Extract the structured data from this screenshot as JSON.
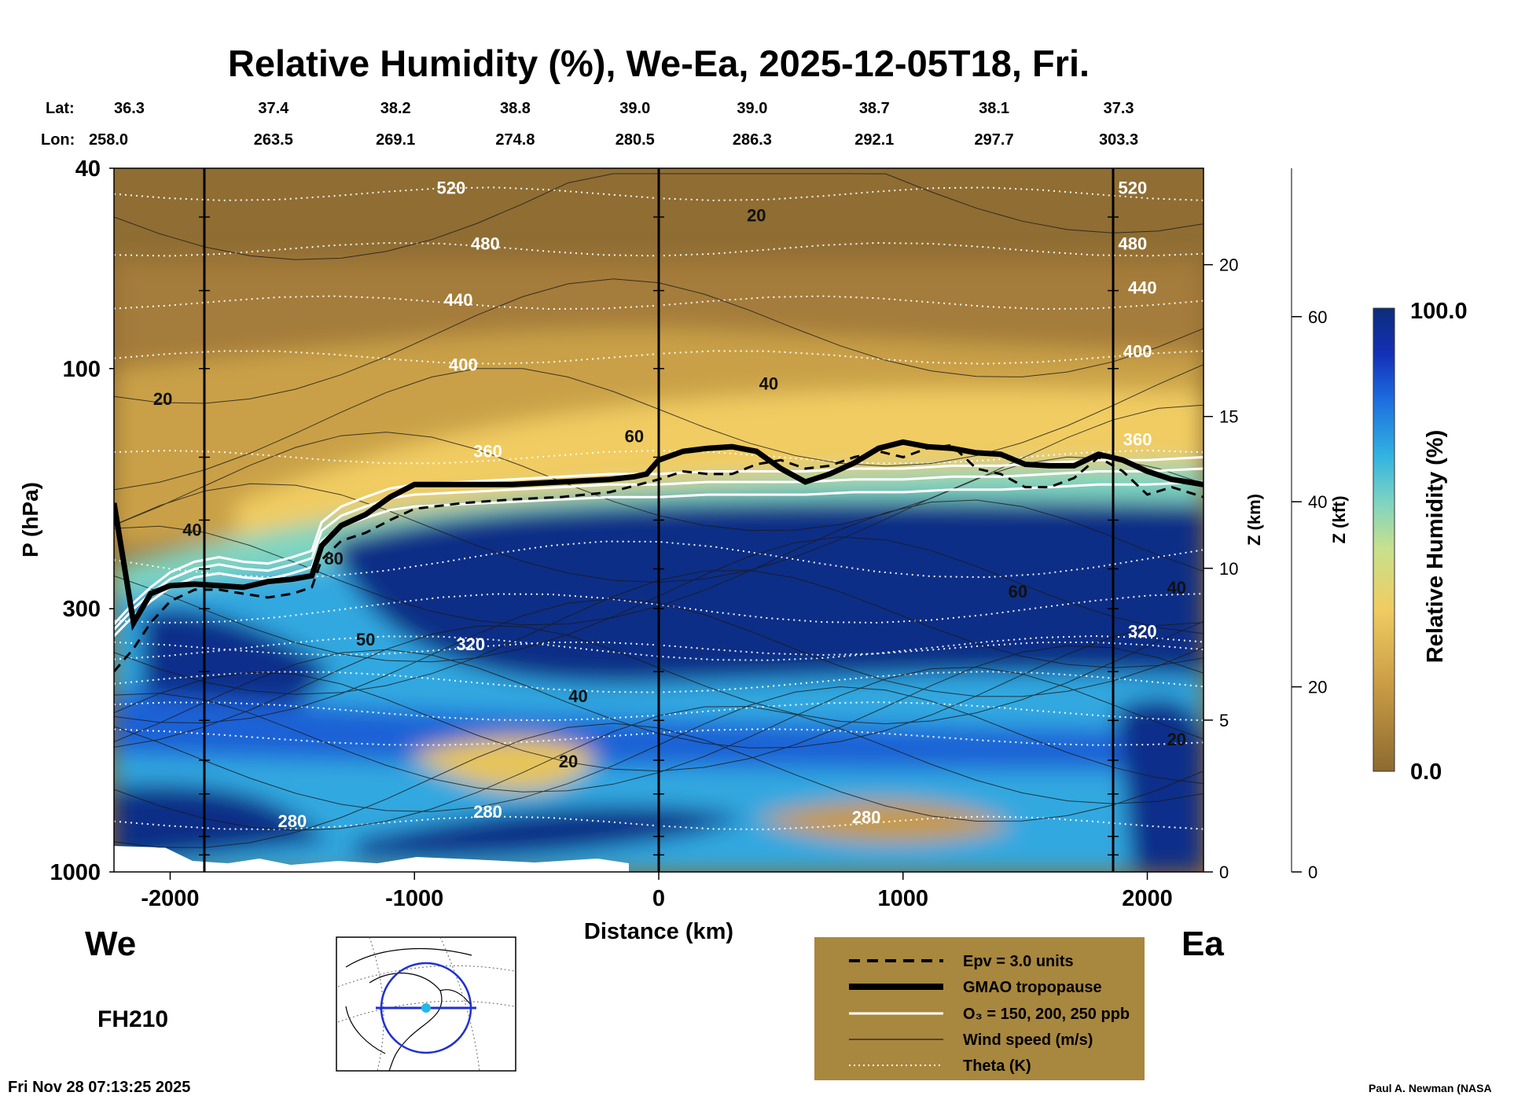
{
  "chart_data": {
    "type": "heatmap",
    "title": "Relative Humidity (%), We-Ea, 2025-12-05T18, Fri.",
    "xlabel": "Distance (km)",
    "ylabel": "P (hPa)",
    "y2label": "Z (km)",
    "y3label": "Z (kft)",
    "colorbar_label": "Relative Humidity (%)",
    "colorbar_range": [
      0.0,
      100.0
    ],
    "colorbar_ticks": [
      "100.0",
      "0.0"
    ],
    "xlim": [
      -2230,
      2230
    ],
    "ylim": [
      1000,
      40
    ],
    "y_scale": "log",
    "x_ticks": [
      -2000,
      -1000,
      0,
      1000,
      2000
    ],
    "x_tick_labels": [
      "-2000",
      "-1000",
      "0",
      "1000",
      "2000"
    ],
    "y_ticks": [
      40,
      100,
      300,
      1000
    ],
    "y_tick_labels": [
      "40",
      "100",
      "300",
      "1000"
    ],
    "z_km_ticks": [
      0,
      5,
      10,
      15,
      20
    ],
    "z_kft_ticks": [
      0,
      20,
      40,
      60
    ],
    "lat_label": "Lat:",
    "lon_label": "Lon:",
    "lat_values": [
      "36.3",
      "37.4",
      "38.2",
      "38.8",
      "39.0",
      "39.0",
      "38.7",
      "38.1",
      "37.3"
    ],
    "lon_values": [
      "258.0",
      "263.5",
      "269.1",
      "274.8",
      "280.5",
      "286.3",
      "292.1",
      "297.7",
      "303.3"
    ],
    "latlon_distances": [
      -2230,
      -1690,
      -1190,
      -700,
      -210,
      270,
      770,
      1260,
      1770
    ],
    "section_markers_km": [
      -1860,
      0,
      1860
    ],
    "tropopause": {
      "name": "GMAO tropopause",
      "x": [
        -2230,
        -2150,
        -2080,
        -2000,
        -1900,
        -1800,
        -1700,
        -1600,
        -1500,
        -1420,
        -1380,
        -1300,
        -1200,
        -1100,
        -1000,
        -800,
        -600,
        -400,
        -200,
        -100,
        -50,
        0,
        100,
        200,
        300,
        400,
        500,
        600,
        700,
        800,
        900,
        1000,
        1100,
        1200,
        1300,
        1400,
        1500,
        1600,
        1700,
        1800,
        1900,
        2000,
        2100,
        2230
      ],
      "p": [
        185,
        320,
        280,
        270,
        268,
        270,
        272,
        265,
        262,
        258,
        225,
        205,
        195,
        180,
        170,
        170,
        170,
        168,
        166,
        164,
        162,
        152,
        146,
        144,
        143,
        146,
        158,
        168,
        162,
        154,
        144,
        140,
        143,
        144,
        147,
        148,
        155,
        156,
        156,
        148,
        152,
        160,
        166,
        170
      ]
    },
    "epv": {
      "name": "Epv = 3.0 units",
      "x": [
        -2230,
        -2150,
        -2080,
        -2000,
        -1900,
        -1800,
        -1700,
        -1600,
        -1500,
        -1420,
        -1380,
        -1300,
        -1200,
        -1100,
        -1000,
        -800,
        -600,
        -400,
        -200,
        0,
        100,
        200,
        300,
        400,
        500,
        600,
        700,
        800,
        900,
        1000,
        1100,
        1200,
        1300,
        1400,
        1500,
        1600,
        1700,
        1800,
        1900,
        2000,
        2100,
        2230
      ],
      "p": [
        400,
        360,
        320,
        290,
        275,
        275,
        280,
        285,
        280,
        272,
        240,
        220,
        212,
        200,
        190,
        185,
        182,
        180,
        176,
        166,
        160,
        162,
        162,
        155,
        152,
        158,
        156,
        150,
        146,
        150,
        144,
        142,
        158,
        162,
        172,
        172,
        165,
        150,
        160,
        178,
        172,
        180
      ]
    },
    "ozone": {
      "name": "O₃ = 150, 200, 250 ppb",
      "x": [
        -2230,
        -2150,
        -2080,
        -2000,
        -1900,
        -1800,
        -1700,
        -1600,
        -1500,
        -1420,
        -1380,
        -1300,
        -1200,
        -1100,
        -1000,
        -800,
        -600,
        -400,
        -200,
        0,
        200,
        400,
        600,
        800,
        1000,
        1200,
        1400,
        1600,
        1800,
        2000,
        2230
      ],
      "p": [
        330,
        300,
        280,
        262,
        250,
        245,
        250,
        252,
        245,
        238,
        210,
        196,
        188,
        181,
        178,
        176,
        174,
        172,
        170,
        170,
        168,
        168,
        168,
        166,
        166,
        164,
        164,
        162,
        160,
        160,
        158
      ],
      "offsets_hpa": [
        -8,
        0,
        10
      ]
    },
    "wind_labels": [
      "20",
      "20",
      "40",
      "40",
      "60",
      "60",
      "80",
      "50",
      "40",
      "20",
      "40",
      "20"
    ],
    "theta_levels": [
      "520",
      "480",
      "440",
      "400",
      "360",
      "320",
      "280"
    ],
    "theta_labels": [
      "520",
      "480",
      "440",
      "400",
      "360",
      "320",
      "280",
      "280",
      "280",
      "520",
      "480",
      "440",
      "400",
      "360",
      "320"
    ],
    "legend": {
      "placement": "bottom-right",
      "entries": [
        {
          "label": "Epv = 3.0 units",
          "style": "dashed-black"
        },
        {
          "label": "GMAO tropopause",
          "style": "thick-black"
        },
        {
          "label": "O₃ = 150, 200, 250 ppb",
          "style": "white"
        },
        {
          "label": "Wind speed (m/s)",
          "style": "thin-black"
        },
        {
          "label": "Theta (K)",
          "style": "dotted-white"
        }
      ]
    },
    "colors": {
      "low": "#8c6a30",
      "mid_low": "#e8c45a",
      "mid": "#7ed4c0",
      "mid_high": "#1e78e0",
      "high": "#0c2d7a",
      "legend_bg": "#a8873e"
    }
  },
  "labels": {
    "west": "We",
    "east": "Ea",
    "forecast_hour": "FH210",
    "timestamp": "Fri Nov 28 07:13:25 2025",
    "credit": "Paul A. Newman (NASA"
  }
}
